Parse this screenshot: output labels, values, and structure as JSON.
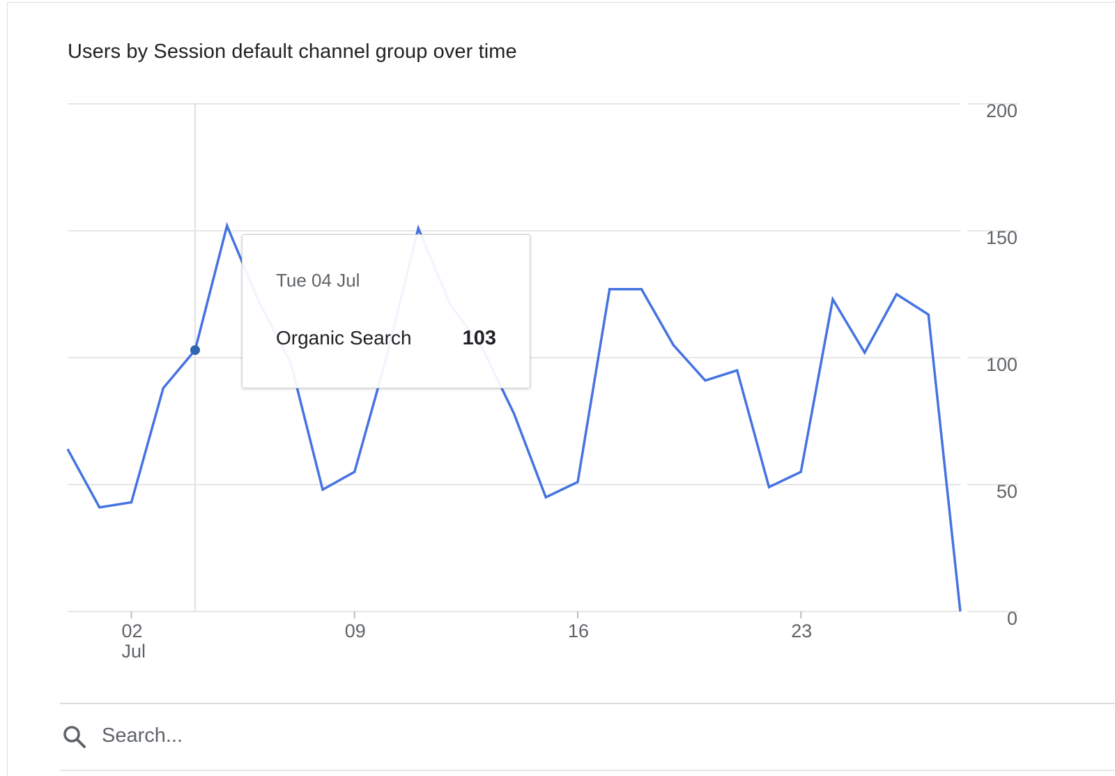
{
  "card": {
    "title": "Users by Session default channel group over time"
  },
  "chart_data": {
    "type": "line",
    "title": "Users by Session default channel group over time",
    "xlabel": "",
    "ylabel": "",
    "ylim": [
      0,
      200
    ],
    "yticks": [
      0,
      50,
      100,
      150,
      200
    ],
    "y_axis_side": "right",
    "grid": true,
    "x_dates": [
      "Jun 30",
      "Jul 01",
      "Jul 02",
      "Jul 03",
      "Jul 04",
      "Jul 05",
      "Jul 06",
      "Jul 07",
      "Jul 08",
      "Jul 09",
      "Jul 10",
      "Jul 11",
      "Jul 12",
      "Jul 13",
      "Jul 14",
      "Jul 15",
      "Jul 16",
      "Jul 17",
      "Jul 18",
      "Jul 19",
      "Jul 20",
      "Jul 21",
      "Jul 22",
      "Jul 23",
      "Jul 24",
      "Jul 25",
      "Jul 26",
      "Jul 27",
      "Jul 28"
    ],
    "xticks": [
      {
        "date": "Jul 02",
        "label": "02",
        "sublabel": "Jul"
      },
      {
        "date": "Jul 09",
        "label": "09",
        "sublabel": ""
      },
      {
        "date": "Jul 16",
        "label": "16",
        "sublabel": ""
      },
      {
        "date": "Jul 23",
        "label": "23",
        "sublabel": ""
      }
    ],
    "series": [
      {
        "name": "Organic Search",
        "color": "#4473e1",
        "values": [
          64,
          41,
          43,
          88,
          103,
          152,
          122,
          98,
          48,
          55,
          100,
          151,
          121,
          104,
          78,
          45,
          51,
          127,
          127,
          105,
          91,
          95,
          49,
          55,
          123,
          102,
          125,
          117,
          0
        ]
      }
    ],
    "tooltip": {
      "date_label": "Tue 04 Jul",
      "series": "Organic Search",
      "value": "103",
      "hover_date": "Jul 04"
    }
  },
  "search": {
    "placeholder": "Search..."
  },
  "icons": {
    "search": "search-icon"
  }
}
